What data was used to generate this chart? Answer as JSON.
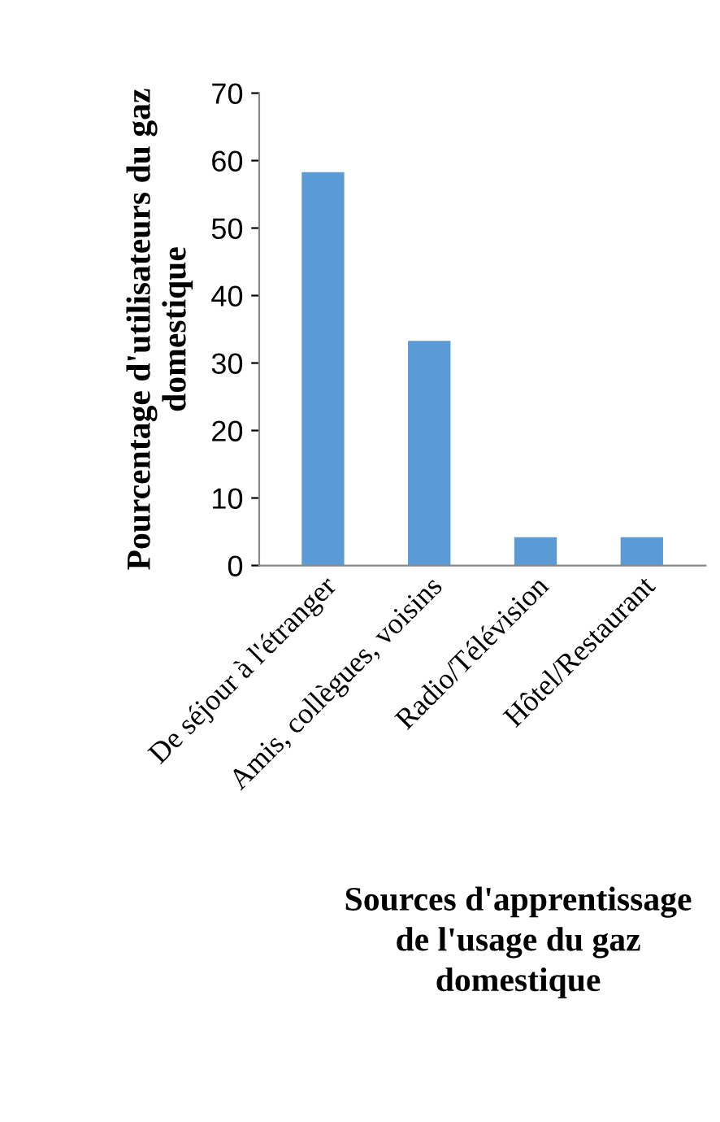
{
  "chart_data": {
    "type": "bar",
    "categories": [
      "De séjour à l'étranger",
      "Amis, collègues, voisins",
      "Radio/Télévision",
      "Hôtel/Restaurant"
    ],
    "values": [
      58.3,
      33.3,
      4.2,
      4.2
    ],
    "color": "#5b9bd5",
    "ylabel": "Pourcentage d'utilisateurs du gaz\ndomestique",
    "xlabel": "Sources d'apprentissage\nde l'usage du gaz\ndomestique",
    "ylim": [
      0,
      70
    ],
    "yticks": [
      0,
      10,
      20,
      30,
      40,
      50,
      60,
      70
    ],
    "grid": false,
    "legend": false
  }
}
